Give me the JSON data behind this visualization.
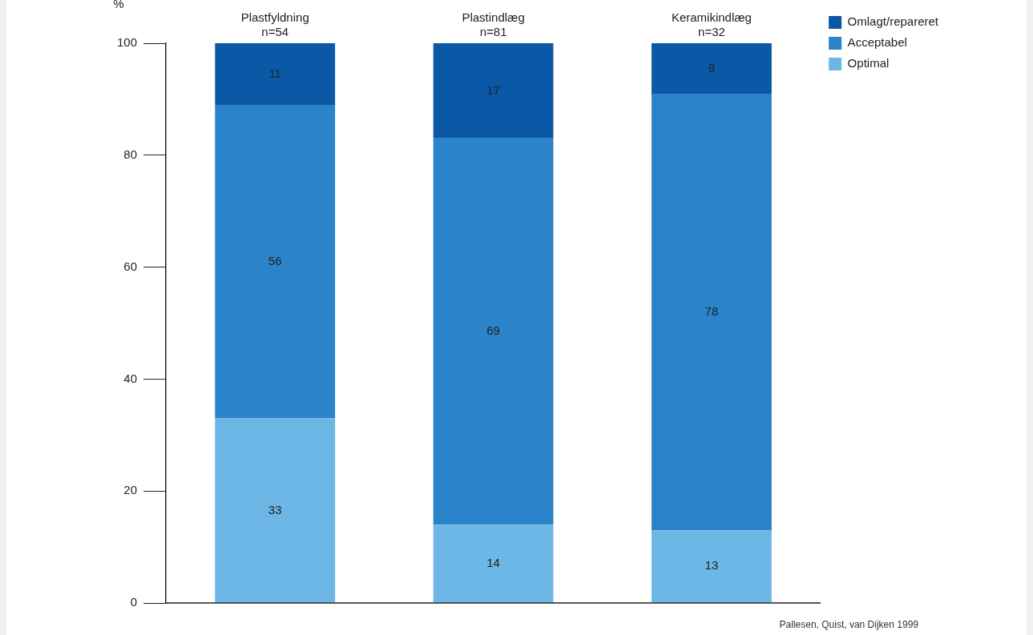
{
  "chart_data": {
    "type": "bar",
    "stacked": true,
    "ylabel": "%",
    "categories": [
      "Plastfyldning\nn=54",
      "Plastindlæg\nn=81",
      "Keramikindlæg\nn=32"
    ],
    "series": [
      {
        "name": "Optimal",
        "color": "#6cb7e5",
        "values": [
          33,
          14,
          13
        ]
      },
      {
        "name": "Acceptabel",
        "color": "#2b83c9",
        "values": [
          56,
          69,
          78
        ]
      },
      {
        "name": "Omlagt/repareret",
        "color": "#0a58a6",
        "values": [
          11,
          17,
          9
        ]
      }
    ],
    "ylim": [
      0,
      100
    ],
    "yticks": [
      0,
      20,
      40,
      60,
      80,
      100
    ],
    "grid": false,
    "legend": "top right",
    "data_labels": true,
    "annotations": [
      "Pallesen, Quist, van Dijken 1999"
    ]
  }
}
